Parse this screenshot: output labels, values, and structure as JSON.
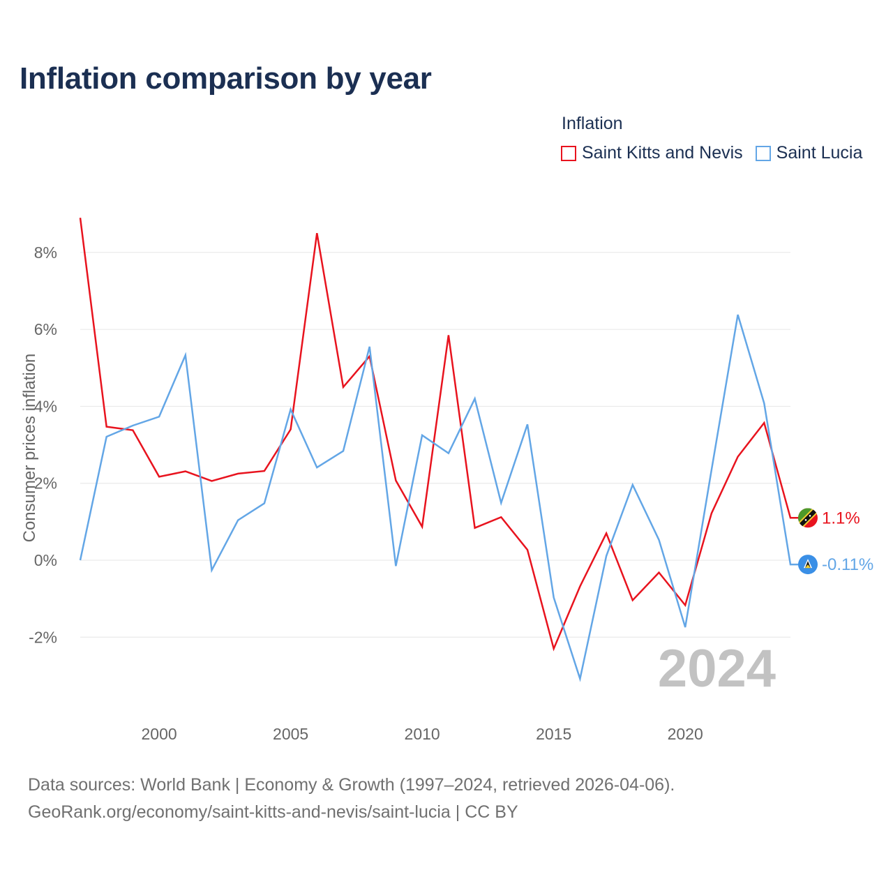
{
  "title": "Inflation comparison by year",
  "legend": {
    "title": "Inflation",
    "items": [
      {
        "label": "Saint Kitts and Nevis",
        "color": "#e8131e"
      },
      {
        "label": "Saint Lucia",
        "color": "#63a6e6"
      }
    ]
  },
  "footer": {
    "line1": "Data sources: World Bank | Economy & Growth (1997–2024, retrieved 2026-04-06).",
    "line2": "GeoRank.org/economy/saint-kitts-and-nevis/saint-lucia | CC BY"
  },
  "chart_data": {
    "type": "line",
    "title": "Inflation comparison by year",
    "xlabel": "",
    "ylabel": "Consumer prices inflation",
    "xlim": [
      1997,
      2024
    ],
    "ylim": [
      -3.5,
      9.5
    ],
    "xticks": [
      2000,
      2005,
      2010,
      2015,
      2020
    ],
    "yticks": [
      -2,
      0,
      2,
      4,
      6,
      8
    ],
    "ytick_labels": [
      "-2%",
      "0%",
      "2%",
      "4%",
      "6%",
      "8%"
    ],
    "grid": true,
    "year_watermark": "2024",
    "x": [
      1997,
      1998,
      1999,
      2000,
      2001,
      2002,
      2003,
      2004,
      2005,
      2006,
      2007,
      2008,
      2009,
      2010,
      2011,
      2012,
      2013,
      2014,
      2015,
      2016,
      2017,
      2018,
      2019,
      2020,
      2021,
      2022,
      2023,
      2024
    ],
    "series": [
      {
        "name": "Saint Kitts and Nevis",
        "color": "#e8131e",
        "values": [
          8.9,
          3.47,
          3.38,
          2.17,
          2.31,
          2.06,
          2.25,
          2.32,
          3.4,
          8.5,
          4.5,
          5.3,
          2.07,
          0.87,
          5.85,
          0.84,
          1.12,
          0.27,
          -2.3,
          -0.68,
          0.7,
          -1.04,
          -0.32,
          -1.17,
          1.22,
          2.69,
          3.57,
          1.1
        ],
        "end_label": "1.1%",
        "flag": "Saint Kitts and Nevis flag"
      },
      {
        "name": "Saint Lucia",
        "color": "#63a6e6",
        "values": [
          0.0,
          3.21,
          3.5,
          3.73,
          5.33,
          -0.26,
          1.04,
          1.48,
          3.92,
          2.41,
          2.84,
          5.55,
          -0.15,
          3.25,
          2.78,
          4.2,
          1.49,
          3.53,
          -0.97,
          -3.08,
          0.11,
          1.96,
          0.53,
          -1.74,
          2.35,
          6.38,
          4.08,
          -0.11
        ],
        "end_label": "-0.11%",
        "flag": "Saint Lucia flag"
      }
    ]
  }
}
